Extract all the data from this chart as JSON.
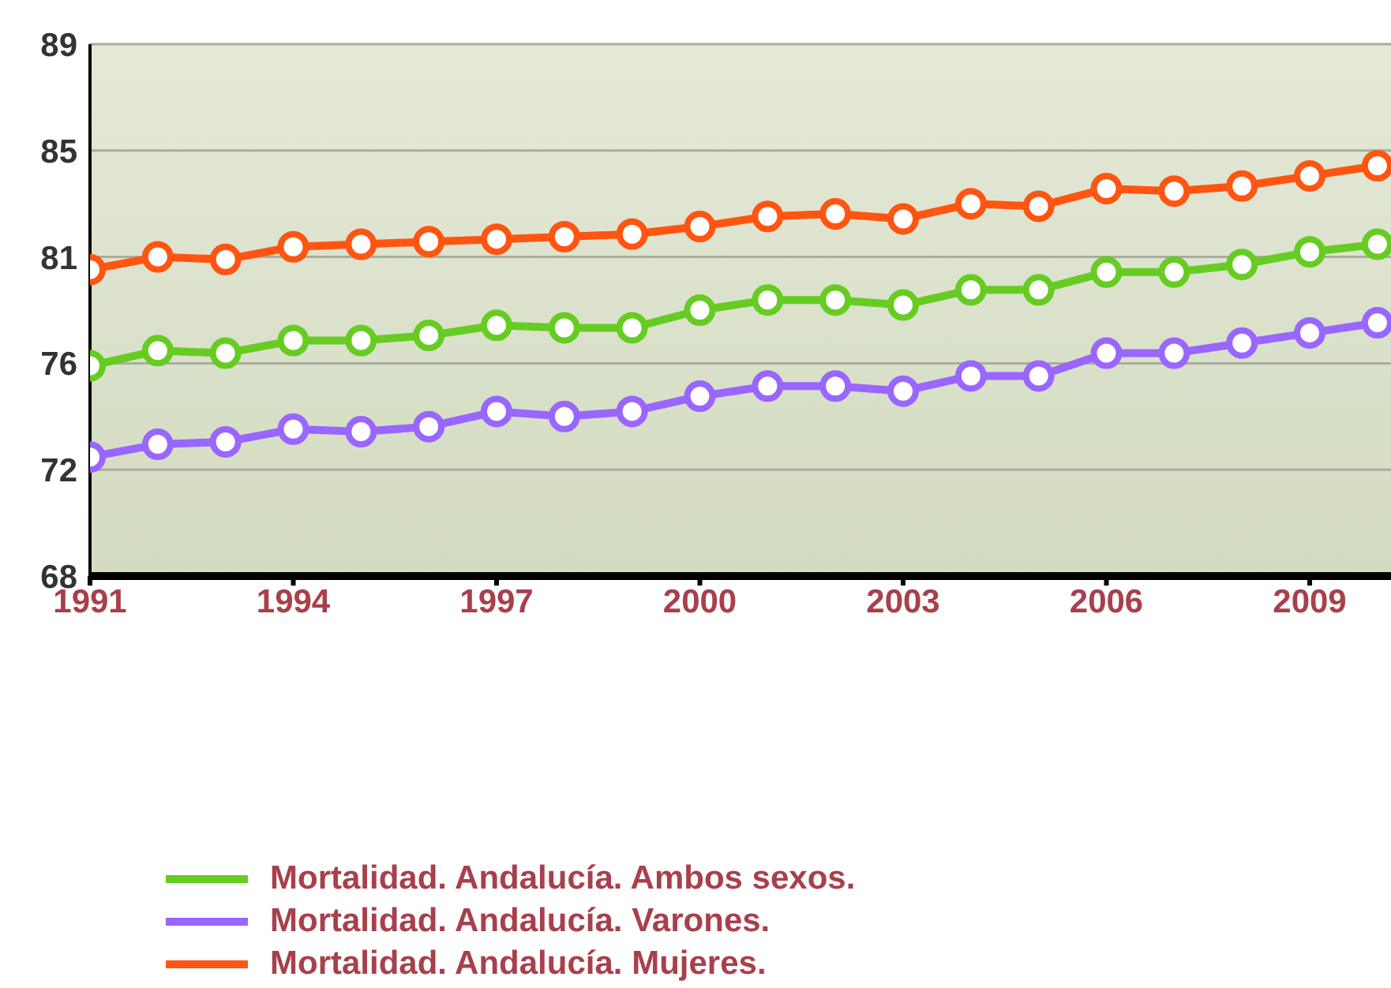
{
  "chart_data": {
    "type": "line",
    "x": [
      1991,
      1992,
      1993,
      1994,
      1995,
      1996,
      1997,
      1998,
      1999,
      2000,
      2001,
      2002,
      2003,
      2004,
      2005,
      2006,
      2007,
      2008,
      2009,
      2010
    ],
    "series": [
      {
        "name": "Mortalidad. Andalucía. Ambos sexos.",
        "color": "#66cc22",
        "values": [
          76.3,
          76.9,
          76.8,
          77.3,
          77.3,
          77.5,
          77.9,
          77.8,
          77.8,
          78.5,
          78.9,
          78.9,
          78.7,
          79.3,
          79.3,
          80.0,
          80.0,
          80.3,
          80.8,
          81.1
        ]
      },
      {
        "name": "Mortalidad. Andalucía. Varones.",
        "color": "#9966ff",
        "values": [
          72.7,
          73.2,
          73.3,
          73.8,
          73.7,
          73.9,
          74.5,
          74.3,
          74.5,
          75.1,
          75.5,
          75.5,
          75.3,
          75.9,
          75.9,
          76.8,
          76.8,
          77.2,
          77.6,
          78.0
        ]
      },
      {
        "name": "Mortalidad. Andalucía. Mujeres.",
        "color": "#ff5511",
        "values": [
          80.1,
          80.6,
          80.5,
          81.0,
          81.1,
          81.2,
          81.3,
          81.4,
          81.5,
          81.8,
          82.2,
          82.3,
          82.1,
          82.7,
          82.6,
          83.3,
          83.2,
          83.4,
          83.8,
          84.2
        ]
      }
    ],
    "xlim": [
      1991,
      2010.2
    ],
    "xticks": [
      1991,
      1994,
      1997,
      2000,
      2003,
      2006,
      2009
    ],
    "ylim": [
      68,
      89
    ],
    "yticks": [
      68,
      {
        "value": 72.2,
        "label": "72"
      },
      {
        "value": 76.4,
        "label": "76"
      },
      {
        "value": 80.6,
        "label": "81"
      },
      {
        "value": 84.8,
        "label": "85"
      },
      89
    ],
    "grid": "y",
    "legend": "bottom",
    "marker": "circle",
    "line_style": "solid"
  }
}
